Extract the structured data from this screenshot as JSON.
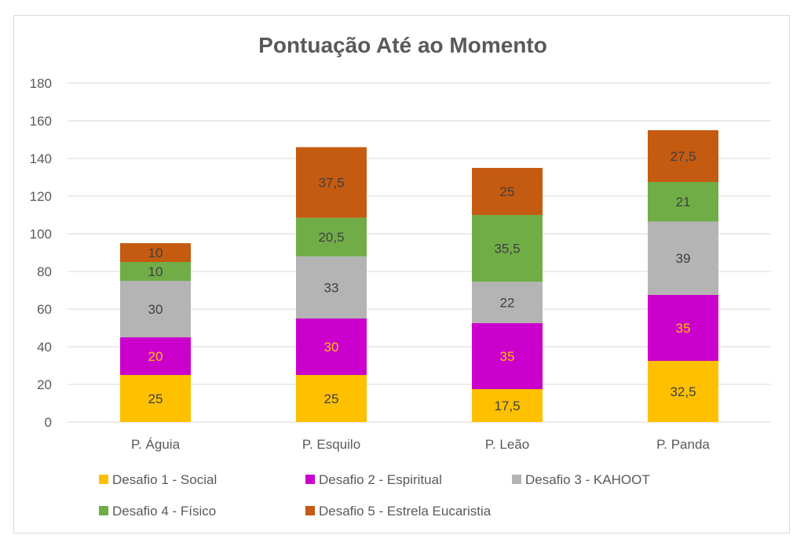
{
  "chart_data": {
    "type": "bar",
    "stacked": true,
    "title": "Pontuação Até ao Momento",
    "xlabel": "",
    "ylabel": "",
    "ylim": [
      0,
      180
    ],
    "yticks": [
      0,
      20,
      40,
      60,
      80,
      100,
      120,
      140,
      160,
      180
    ],
    "grid": true,
    "legend_position": "bottom",
    "categories": [
      "P. Águia",
      "P. Esquilo",
      "P. Leão",
      "P. Panda"
    ],
    "series": [
      {
        "name": "Desafio 1 - Social",
        "color": "#ffc000",
        "label_color": "#404040",
        "values": [
          25,
          25,
          17.5,
          32.5
        ],
        "labels": [
          "25",
          "25",
          "17,5",
          "32,5"
        ]
      },
      {
        "name": "Desafio 2 - Espiritual",
        "color": "#cc00cc",
        "label_color": "#ffc000",
        "values": [
          20,
          30,
          35,
          35
        ],
        "labels": [
          "20",
          "30",
          "35",
          "35"
        ]
      },
      {
        "name": "Desafio 3 - KAHOOT",
        "color": "#b4b4b4",
        "label_color": "#404040",
        "values": [
          30,
          33,
          22,
          39
        ],
        "labels": [
          "30",
          "33",
          "22",
          "39"
        ]
      },
      {
        "name": "Desafio 4 - Físico",
        "color": "#70ad47",
        "label_color": "#404040",
        "values": [
          10,
          20.5,
          35.5,
          21
        ],
        "labels": [
          "10",
          "20,5",
          "35,5",
          "21"
        ]
      },
      {
        "name": "Desafio 5 - Estrela Eucaristia",
        "color": "#c55a11",
        "label_color": "#404040",
        "values": [
          10,
          37.5,
          25,
          27.5
        ],
        "labels": [
          "10",
          "37,5",
          "25",
          "27,5"
        ]
      }
    ]
  }
}
